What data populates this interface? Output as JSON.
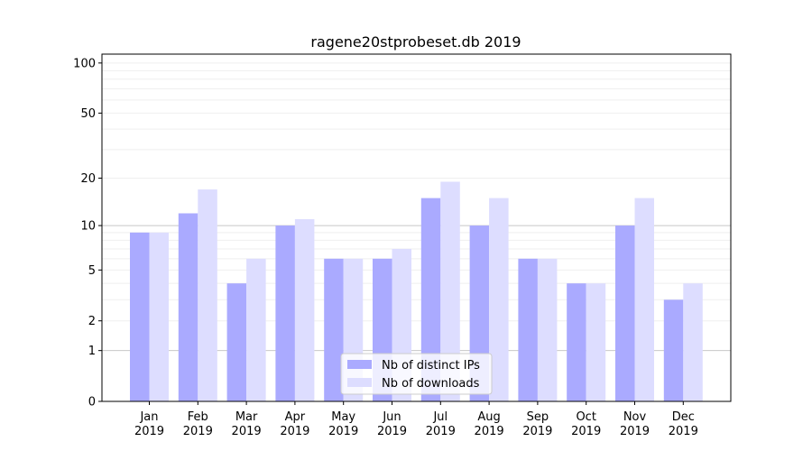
{
  "chart_data": {
    "type": "bar",
    "title": "ragene20stprobeset.db 2019",
    "xlabel": "",
    "ylabel": "",
    "yscale": "log10(1+y)",
    "ylim": [
      0,
      113
    ],
    "yticks": [
      0,
      1,
      2,
      5,
      10,
      20,
      50,
      100
    ],
    "categories": [
      [
        "Jan",
        "2019"
      ],
      [
        "Feb",
        "2019"
      ],
      [
        "Mar",
        "2019"
      ],
      [
        "Apr",
        "2019"
      ],
      [
        "May",
        "2019"
      ],
      [
        "Jun",
        "2019"
      ],
      [
        "Jul",
        "2019"
      ],
      [
        "Aug",
        "2019"
      ],
      [
        "Sep",
        "2019"
      ],
      [
        "Oct",
        "2019"
      ],
      [
        "Nov",
        "2019"
      ],
      [
        "Dec",
        "2019"
      ]
    ],
    "series": [
      {
        "name": "Nb of distinct IPs",
        "color": "#aaaaff",
        "values": [
          9,
          12,
          4,
          10,
          6,
          6,
          15,
          10,
          6,
          4,
          10,
          3
        ]
      },
      {
        "name": "Nb of downloads",
        "color": "#ddddff",
        "values": [
          9,
          17,
          6,
          11,
          6,
          7,
          19,
          15,
          6,
          4,
          15,
          4
        ]
      }
    ],
    "legend": "bottom-center",
    "grid": true
  }
}
